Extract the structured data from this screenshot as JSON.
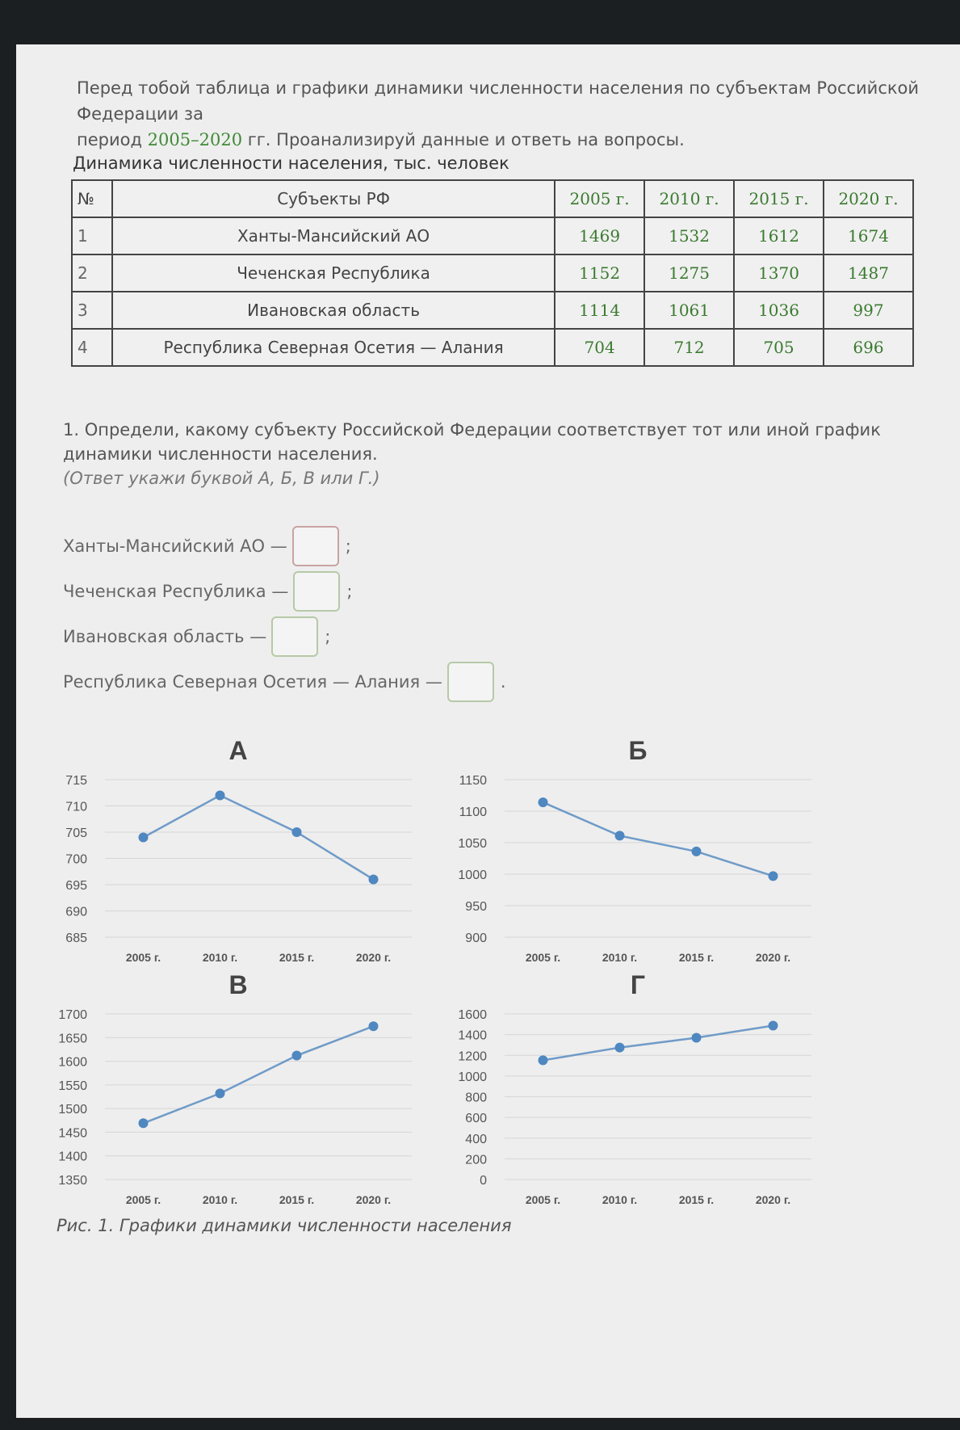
{
  "intro": {
    "line1": "Перед тобой таблица и графики динамики численности населения по субъектам Российской Федерации за",
    "line2_a": "период ",
    "years": "2005–2020",
    "line2_b": " гг. Проанализируй данные и ответь на вопросы."
  },
  "table": {
    "caption": "Динамика численности населения, тыс. человек",
    "headers": [
      "№",
      "Субъекты РФ",
      "2005 г.",
      "2010 г.",
      "2015 г.",
      "2020 г."
    ],
    "rows": [
      {
        "n": "1",
        "name": "Ханты-Мансийский АО",
        "v": [
          "1469",
          "1532",
          "1612",
          "1674"
        ]
      },
      {
        "n": "2",
        "name": "Чеченская Республика",
        "v": [
          "1152",
          "1275",
          "1370",
          "1487"
        ]
      },
      {
        "n": "3",
        "name": "Ивановская область",
        "v": [
          "1114",
          "1061",
          "1036",
          "997"
        ]
      },
      {
        "n": "4",
        "name": "Республика Северная Осетия — Алания",
        "v": [
          "704",
          "712",
          "705",
          "696"
        ]
      }
    ]
  },
  "question": {
    "text": "1. Определи, какому субъекту Российской Федерации соответствует тот или иной график динамики численности населения.",
    "hint": "(Ответ укажи буквой А, Б, В или Г.)"
  },
  "answers": [
    {
      "label": "Ханты-Мансийский АО —",
      "end": ";"
    },
    {
      "label": "Чеченская Республика —",
      "end": ";"
    },
    {
      "label": "Ивановская область —",
      "end": ";"
    },
    {
      "label": "Республика Северная Осетия — Алания —",
      "end": "."
    }
  ],
  "chart_data": [
    {
      "type": "line",
      "title": "А",
      "categories": [
        "2005 г.",
        "2010 г.",
        "2015 г.",
        "2020 г."
      ],
      "values": [
        704,
        712,
        705,
        696
      ],
      "ylim": [
        685,
        715
      ],
      "yticks": [
        715,
        710,
        705,
        700,
        695,
        690,
        685
      ],
      "grid": true
    },
    {
      "type": "line",
      "title": "Б",
      "categories": [
        "2005 г.",
        "2010 г.",
        "2015 г.",
        "2020 г."
      ],
      "values": [
        1114,
        1061,
        1036,
        997
      ],
      "ylim": [
        900,
        1150
      ],
      "yticks": [
        1150,
        1100,
        1050,
        1000,
        950,
        900
      ],
      "grid": true
    },
    {
      "type": "line",
      "title": "В",
      "categories": [
        "2005 г.",
        "2010 г.",
        "2015 г.",
        "2020 г."
      ],
      "values": [
        1469,
        1532,
        1612,
        1674
      ],
      "ylim": [
        1350,
        1700
      ],
      "yticks": [
        1700,
        1650,
        1600,
        1550,
        1500,
        1450,
        1400,
        1350
      ],
      "grid": true
    },
    {
      "type": "line",
      "title": "Г",
      "categories": [
        "2005 г.",
        "2010 г.",
        "2015 г.",
        "2020 г."
      ],
      "values": [
        1152,
        1275,
        1370,
        1487
      ],
      "ylim": [
        0,
        1600
      ],
      "yticks": [
        1600,
        1400,
        1200,
        1000,
        800,
        600,
        400,
        200,
        0
      ],
      "grid": true
    }
  ],
  "figure_caption": "Рис. 1. Графики динамики численности населения",
  "colors": {
    "line": "#6f9bc8",
    "marker": "#4f87c0",
    "accent_green": "#3a7a2f"
  }
}
